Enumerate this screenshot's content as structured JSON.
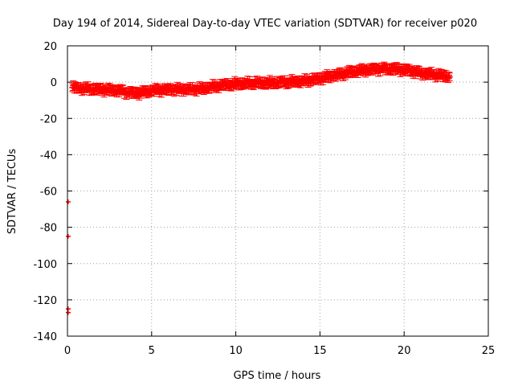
{
  "chart_data": {
    "type": "scatter",
    "title": "Day 194 of 2014, Sidereal Day-to-day VTEC variation (SDTVAR) for receiver p020",
    "xlabel": "GPS time / hours",
    "ylabel": "SDTVAR / TECUs",
    "xlim": [
      0,
      25
    ],
    "ylim": [
      -140,
      20
    ],
    "xticks": [
      0,
      5,
      10,
      15,
      20,
      25
    ],
    "yticks": [
      20,
      0,
      -20,
      -40,
      -60,
      -80,
      -100,
      -120,
      -140
    ],
    "grid": true,
    "marker": "error-bar",
    "series": [
      {
        "name": "SDTVAR",
        "color": "#ff0000",
        "profile": [
          [
            0.3,
            -3
          ],
          [
            1.0,
            -3.5
          ],
          [
            2.0,
            -4
          ],
          [
            3.0,
            -4.5
          ],
          [
            3.5,
            -5.5
          ],
          [
            4.0,
            -6
          ],
          [
            4.5,
            -5.5
          ],
          [
            5.0,
            -4.5
          ],
          [
            6.0,
            -4
          ],
          [
            7.0,
            -4
          ],
          [
            8.0,
            -3.5
          ],
          [
            9.0,
            -2
          ],
          [
            10.0,
            -1
          ],
          [
            11.0,
            -0.5
          ],
          [
            12.0,
            -0.5
          ],
          [
            13.0,
            0
          ],
          [
            14.0,
            0.5
          ],
          [
            15.0,
            2
          ],
          [
            16.0,
            4
          ],
          [
            17.0,
            6
          ],
          [
            18.0,
            7
          ],
          [
            19.0,
            7.5
          ],
          [
            20.0,
            7
          ],
          [
            21.0,
            5
          ],
          [
            22.0,
            4
          ],
          [
            22.7,
            3
          ]
        ],
        "outliers": [
          [
            0.05,
            -66
          ],
          [
            0.05,
            -85
          ],
          [
            0.05,
            -125
          ],
          [
            0.05,
            -127
          ]
        ]
      }
    ]
  }
}
